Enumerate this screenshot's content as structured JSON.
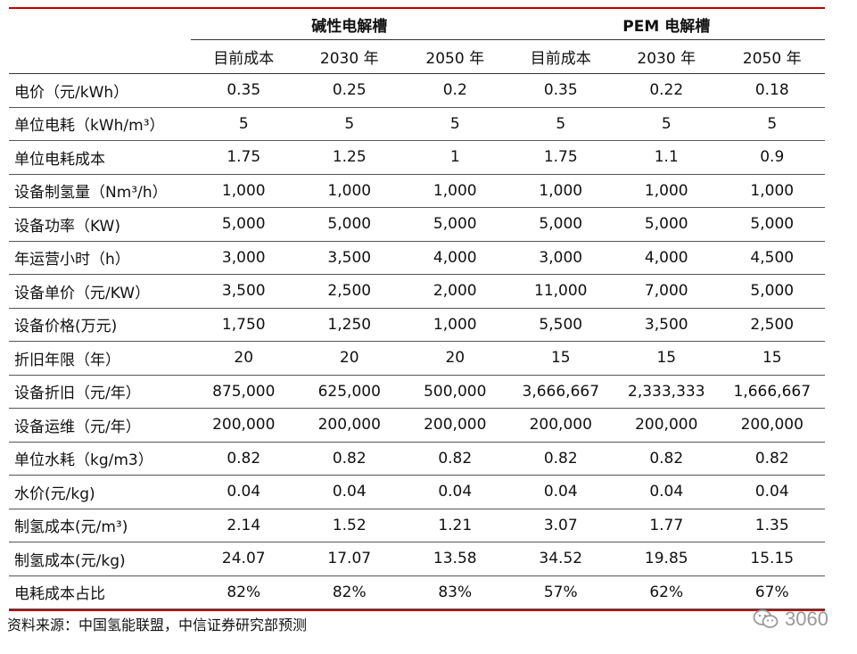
{
  "table": {
    "group_headers": [
      "碱性电解槽",
      "PEM 电解槽"
    ],
    "sub_headers": [
      "目前成本",
      "2030 年",
      "2050 年",
      "目前成本",
      "2030 年",
      "2050 年"
    ],
    "rows": [
      {
        "label": "电价（元/kWh）",
        "values": [
          "0.35",
          "0.25",
          "0.2",
          "0.35",
          "0.22",
          "0.18"
        ]
      },
      {
        "label": "单位电耗（kWh/m³）",
        "values": [
          "5",
          "5",
          "5",
          "5",
          "5",
          "5"
        ]
      },
      {
        "label": "单位电耗成本",
        "values": [
          "1.75",
          "1.25",
          "1",
          "1.75",
          "1.1",
          "0.9"
        ]
      },
      {
        "label": "设备制氢量（Nm³/h）",
        "values": [
          "1,000",
          "1,000",
          "1,000",
          "1,000",
          "1,000",
          "1,000"
        ]
      },
      {
        "label": "设备功率（KW)",
        "values": [
          "5,000",
          "5,000",
          "5,000",
          "5,000",
          "5,000",
          "5,000"
        ]
      },
      {
        "label": "年运营小时（h）",
        "values": [
          "3,000",
          "3,500",
          "4,000",
          "3,000",
          "4,000",
          "4,500"
        ]
      },
      {
        "label": "设备单价（元/KW）",
        "values": [
          "3,500",
          "2,500",
          "2,000",
          "11,000",
          "7,000",
          "5,000"
        ]
      },
      {
        "label": "设备价格(万元)",
        "values": [
          "1,750",
          "1,250",
          "1,000",
          "5,500",
          "3,500",
          "2,500"
        ]
      },
      {
        "label": "折旧年限（年）",
        "values": [
          "20",
          "20",
          "20",
          "15",
          "15",
          "15"
        ]
      },
      {
        "label": "设备折旧（元/年）",
        "values": [
          "875,000",
          "625,000",
          "500,000",
          "3,666,667",
          "2,333,333",
          "1,666,667"
        ]
      },
      {
        "label": "设备运维（元/年）",
        "values": [
          "200,000",
          "200,000",
          "200,000",
          "200,000",
          "200,000",
          "200,000"
        ]
      },
      {
        "label": "单位水耗（kg/m3）",
        "values": [
          "0.82",
          "0.82",
          "0.82",
          "0.82",
          "0.82",
          "0.82"
        ]
      },
      {
        "label": "水价(元/kg)",
        "values": [
          "0.04",
          "0.04",
          "0.04",
          "0.04",
          "0.04",
          "0.04"
        ]
      },
      {
        "label": "制氢成本(元/m³)",
        "values": [
          "2.14",
          "1.52",
          "1.21",
          "3.07",
          "1.77",
          "1.35"
        ]
      },
      {
        "label": "制氢成本(元/kg)",
        "values": [
          "24.07",
          "17.07",
          "13.58",
          "34.52",
          "19.85",
          "15.15"
        ]
      },
      {
        "label": "电耗成本占比",
        "values": [
          "82%",
          "82%",
          "83%",
          "57%",
          "62%",
          "67%"
        ]
      }
    ]
  },
  "source": "资料来源：中国氢能联盟，中信证券研究部预测",
  "watermark": {
    "text": "3060",
    "icon": "wechat-icon"
  },
  "colors": {
    "rule_accent": "#c00000",
    "watermark": "#9a9a9a"
  }
}
